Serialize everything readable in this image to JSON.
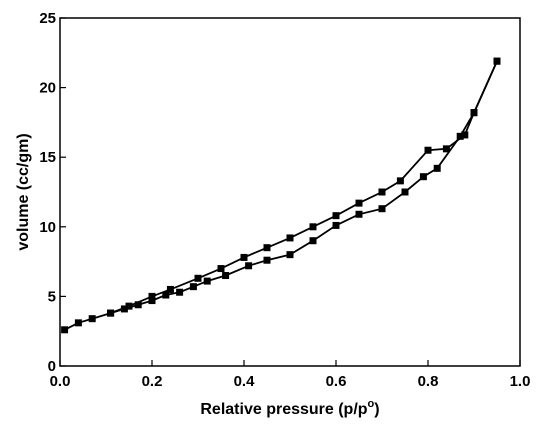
{
  "chart_data": {
    "type": "line",
    "title": "",
    "xlabel_main": "Relative pressure (p/p",
    "xlabel_sup": "o",
    "xlabel_close": ")",
    "ylabel": "volume (cc/gm)",
    "xlim": [
      0.0,
      1.0
    ],
    "ylim": [
      0,
      25
    ],
    "x_ticks": [
      0.0,
      0.2,
      0.4,
      0.6,
      0.8,
      1.0
    ],
    "x_tick_labels": [
      "0.0",
      "0.2",
      "0.4",
      "0.6",
      "0.8",
      "1.0"
    ],
    "y_ticks": [
      0,
      5,
      10,
      15,
      20,
      25
    ],
    "y_tick_labels": [
      "0",
      "5",
      "10",
      "15",
      "20",
      "25"
    ],
    "grid": false,
    "legend": "none",
    "series_color": "#000000",
    "series": [
      {
        "x": [
          0.01,
          0.04,
          0.07,
          0.11,
          0.14,
          0.17,
          0.2,
          0.23,
          0.26,
          0.29,
          0.32,
          0.36,
          0.41,
          0.45,
          0.5,
          0.55,
          0.6,
          0.65,
          0.7,
          0.75,
          0.79,
          0.82,
          0.87,
          0.9,
          0.95
        ],
        "y": [
          2.6,
          3.1,
          3.4,
          3.8,
          4.1,
          4.4,
          4.7,
          5.1,
          5.3,
          5.7,
          6.1,
          6.5,
          7.2,
          7.6,
          8.0,
          9.0,
          10.1,
          10.9,
          11.3,
          12.5,
          13.6,
          14.2,
          16.5,
          18.2,
          21.9
        ]
      },
      {
        "x": [
          0.95,
          0.9,
          0.88,
          0.84,
          0.8,
          0.74,
          0.7,
          0.65,
          0.6,
          0.55,
          0.5,
          0.45,
          0.4,
          0.35,
          0.3,
          0.24,
          0.2,
          0.15,
          0.11
        ],
        "y": [
          21.9,
          18.2,
          16.6,
          15.6,
          15.5,
          13.3,
          12.5,
          11.7,
          10.8,
          10.0,
          9.2,
          8.5,
          7.8,
          7.0,
          6.3,
          5.5,
          5.0,
          4.3,
          3.8
        ]
      }
    ]
  }
}
